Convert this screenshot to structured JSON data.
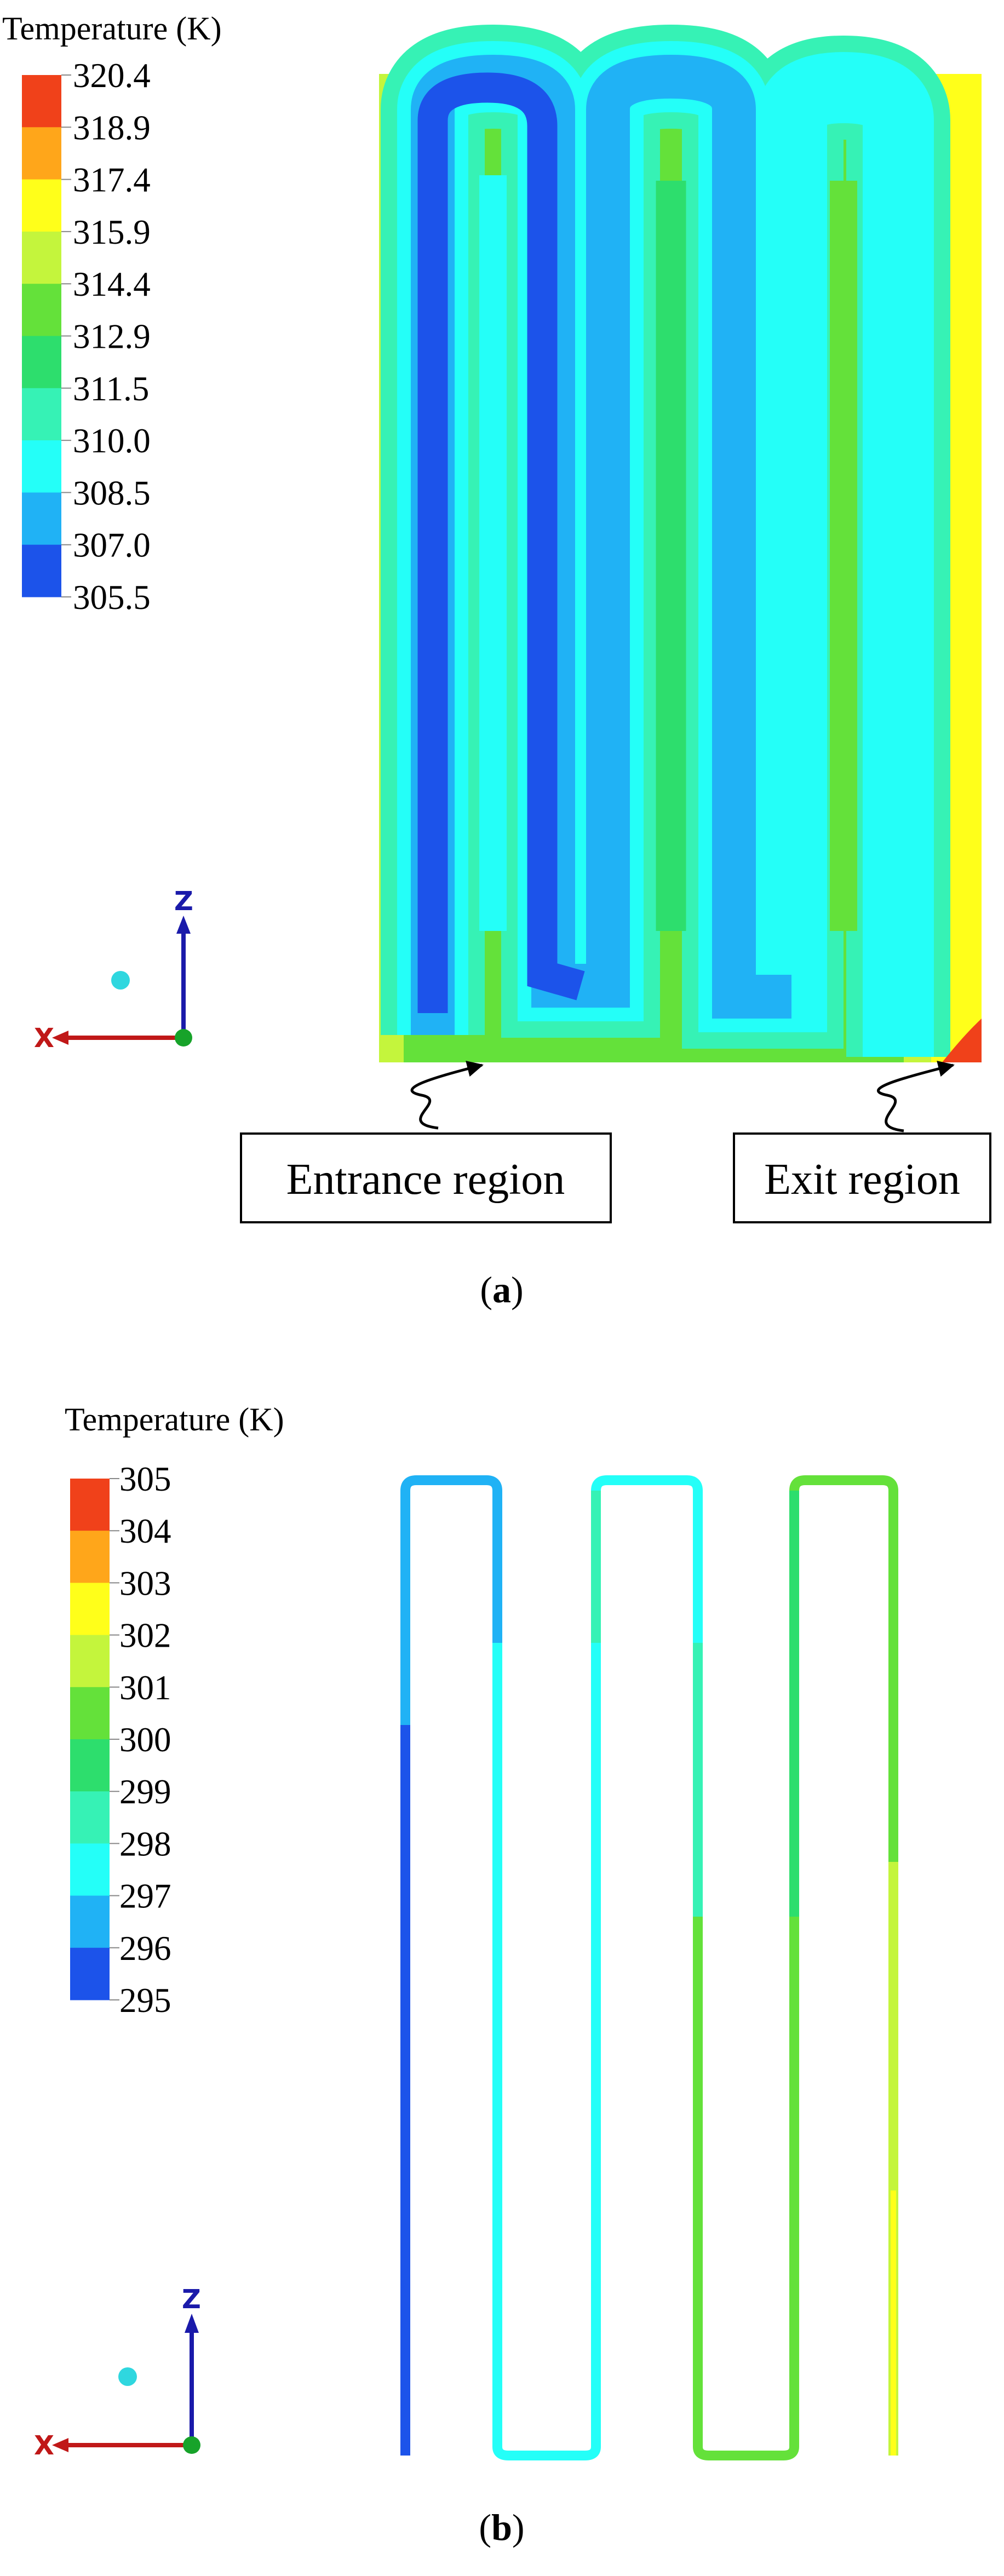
{
  "panel_a": {
    "legend_title": "Temperature (K)",
    "legend_ticks": [
      "320.4",
      "318.9",
      "317.4",
      "315.9",
      "314.4",
      "312.9",
      "311.5",
      "310.0",
      "308.5",
      "307.0",
      "305.5"
    ],
    "legend_colors": [
      "#f0411a",
      "#ffa61a",
      "#ffff1a",
      "#c4f53c",
      "#64e13a",
      "#2dde6d",
      "#36f2b5",
      "#24fff8",
      "#20b2f5",
      "#1c53ea"
    ],
    "axis_z": "Z",
    "axis_x": "X",
    "callout_entrance": "Entrance region",
    "callout_exit": "Exit region",
    "caption_letter": "a"
  },
  "panel_b": {
    "legend_title": "Temperature (K)",
    "legend_ticks": [
      "305",
      "304",
      "303",
      "302",
      "301",
      "300",
      "299",
      "298",
      "297",
      "296",
      "295"
    ],
    "legend_colors": [
      "#f0411a",
      "#ffa61a",
      "#ffff1a",
      "#c4f53c",
      "#64e13a",
      "#2dde6d",
      "#36f2b5",
      "#24fff8",
      "#20b2f5",
      "#1c53ea"
    ],
    "axis_z": "Z",
    "axis_x": "X",
    "caption_letter": "b"
  },
  "colors": {
    "blue_deep": "#1c53ea",
    "blue_mid": "#20b2f5",
    "cyan": "#24fff8",
    "aqua": "#36f2b5",
    "green_light": "#64e13a",
    "green": "#2dde6d",
    "yellow_green": "#c4f53c",
    "yellow": "#ffff1a",
    "orange": "#ffa61a",
    "red": "#f0411a"
  }
}
